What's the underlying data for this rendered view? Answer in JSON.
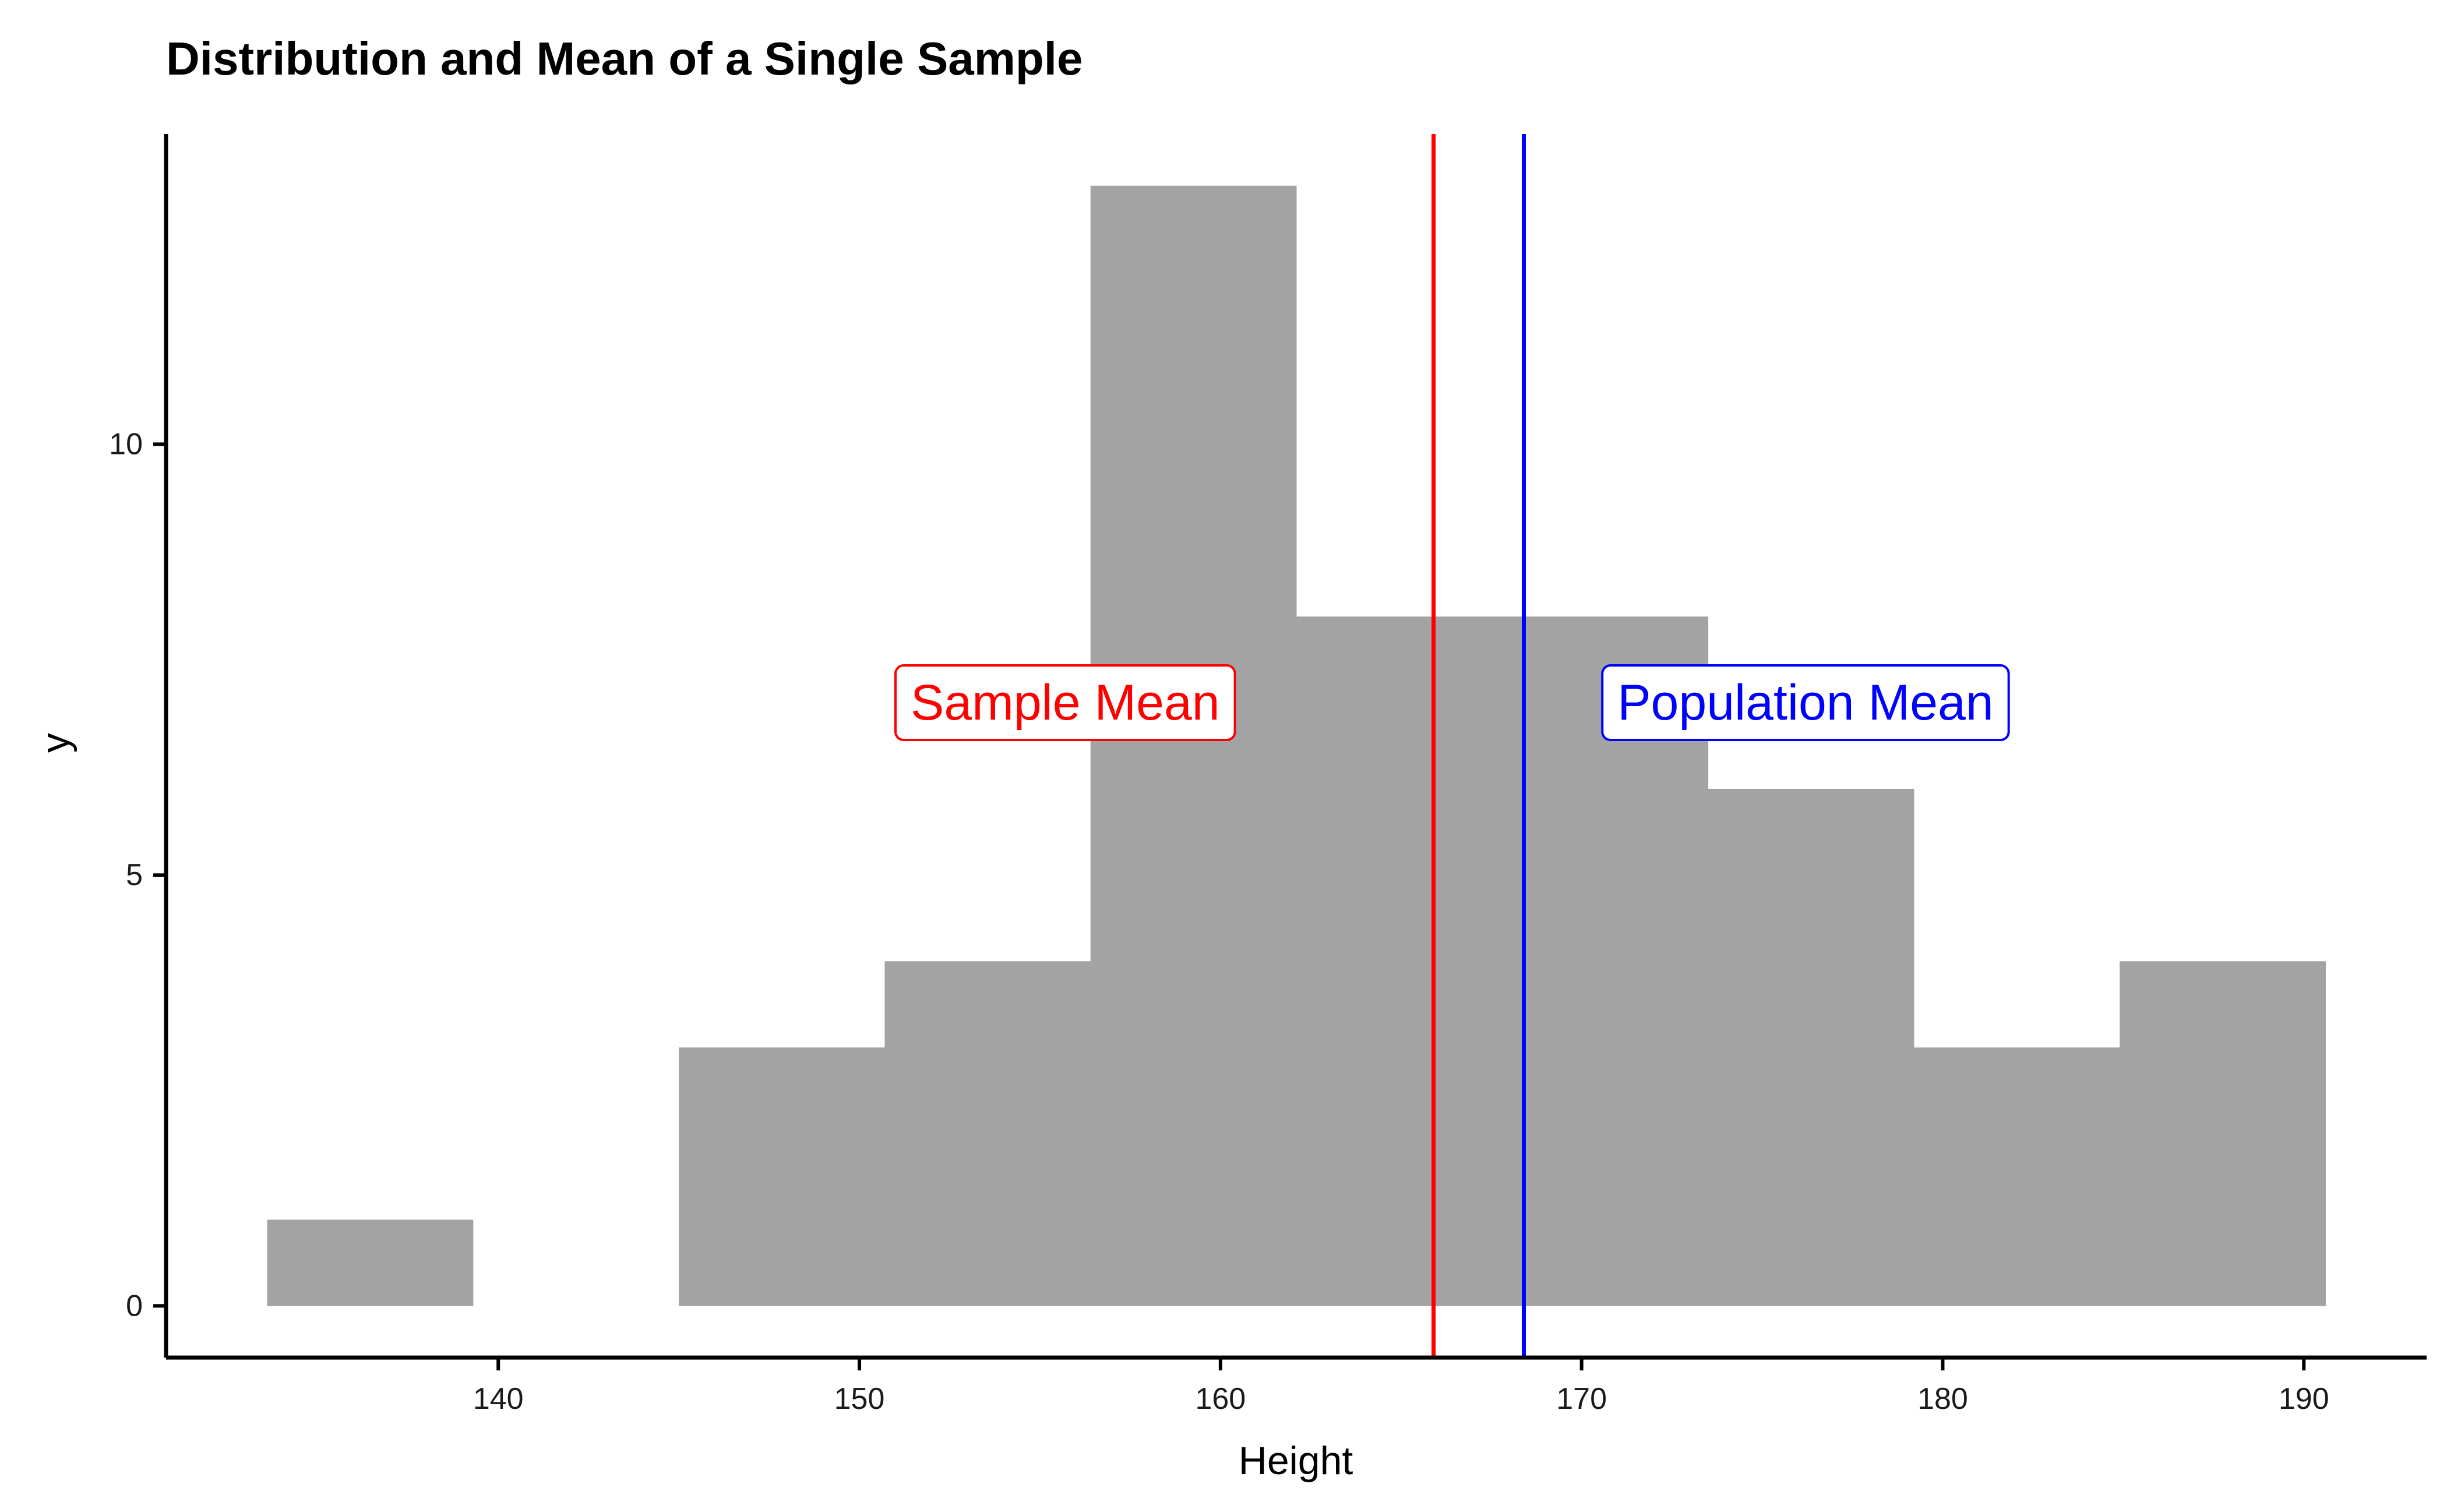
{
  "chart_data": {
    "type": "bar",
    "title": "Distribution and Mean of a Single Sample",
    "xlabel": "Height",
    "ylabel": "y",
    "xlim": [
      130.8,
      193.4
    ],
    "ylim": [
      -0.6,
      13.6
    ],
    "xticks": [
      140,
      150,
      160,
      170,
      180,
      190
    ],
    "yticks": [
      0,
      5,
      10
    ],
    "bar_color": "#a3a3a3",
    "grid": false,
    "bins": [
      {
        "x0": 133.6,
        "x1": 139.3,
        "count": 1
      },
      {
        "x0": 139.3,
        "x1": 145.0,
        "count": 0
      },
      {
        "x0": 145.0,
        "x1": 150.7,
        "count": 3
      },
      {
        "x0": 150.7,
        "x1": 156.4,
        "count": 4
      },
      {
        "x0": 156.4,
        "x1": 162.1,
        "count": 13
      },
      {
        "x0": 162.1,
        "x1": 167.8,
        "count": 8
      },
      {
        "x0": 167.8,
        "x1": 173.5,
        "count": 8
      },
      {
        "x0": 173.5,
        "x1": 179.2,
        "count": 6
      },
      {
        "x0": 179.2,
        "x1": 184.9,
        "count": 3
      },
      {
        "x0": 184.9,
        "x1": 190.6,
        "count": 4
      }
    ],
    "vlines": [
      {
        "name": "sample-mean",
        "x": 165.9,
        "color": "#ff0000"
      },
      {
        "name": "population-mean",
        "x": 168.4,
        "color": "#0000ff"
      }
    ],
    "annotations": [
      {
        "name": "sample-mean-label",
        "text": "Sample Mean",
        "x": 155.7,
        "y": 7,
        "color": "#ff0000"
      },
      {
        "name": "population-mean-label",
        "text": "Population Mean",
        "x": 176.2,
        "y": 7,
        "color": "#0000ff"
      }
    ]
  }
}
